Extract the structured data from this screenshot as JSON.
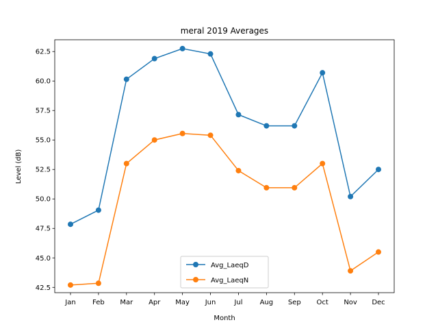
{
  "chart_data": {
    "type": "line",
    "title": "meral 2019 Averages",
    "xlabel": "Month",
    "ylabel": "Level (dB)",
    "categories": [
      "Jan",
      "Feb",
      "Mar",
      "Apr",
      "May",
      "Jun",
      "Jul",
      "Aug",
      "Sep",
      "Oct",
      "Nov",
      "Dec"
    ],
    "ylim": [
      42.05,
      63.5
    ],
    "yticks": [
      42.5,
      45.0,
      47.5,
      50.0,
      52.5,
      55.0,
      57.5,
      60.0,
      62.5
    ],
    "ytick_labels": [
      "42.5",
      "45.0",
      "47.5",
      "50.0",
      "52.5",
      "55.0",
      "57.5",
      "60.0",
      "62.5"
    ],
    "grid": false,
    "legend_position": "lower center",
    "series": [
      {
        "name": "Avg_LaeqD",
        "color": "#1f77b4",
        "marker": "circle",
        "values": [
          47.85,
          49.05,
          60.15,
          61.9,
          62.75,
          62.3,
          57.15,
          56.2,
          56.2,
          60.7,
          50.2,
          52.5
        ]
      },
      {
        "name": "Avg_LaeqN",
        "color": "#ff7f0e",
        "marker": "circle",
        "values": [
          42.7,
          42.85,
          53.0,
          55.0,
          55.55,
          55.4,
          52.4,
          50.95,
          50.95,
          53.0,
          43.9,
          45.5
        ]
      }
    ]
  }
}
